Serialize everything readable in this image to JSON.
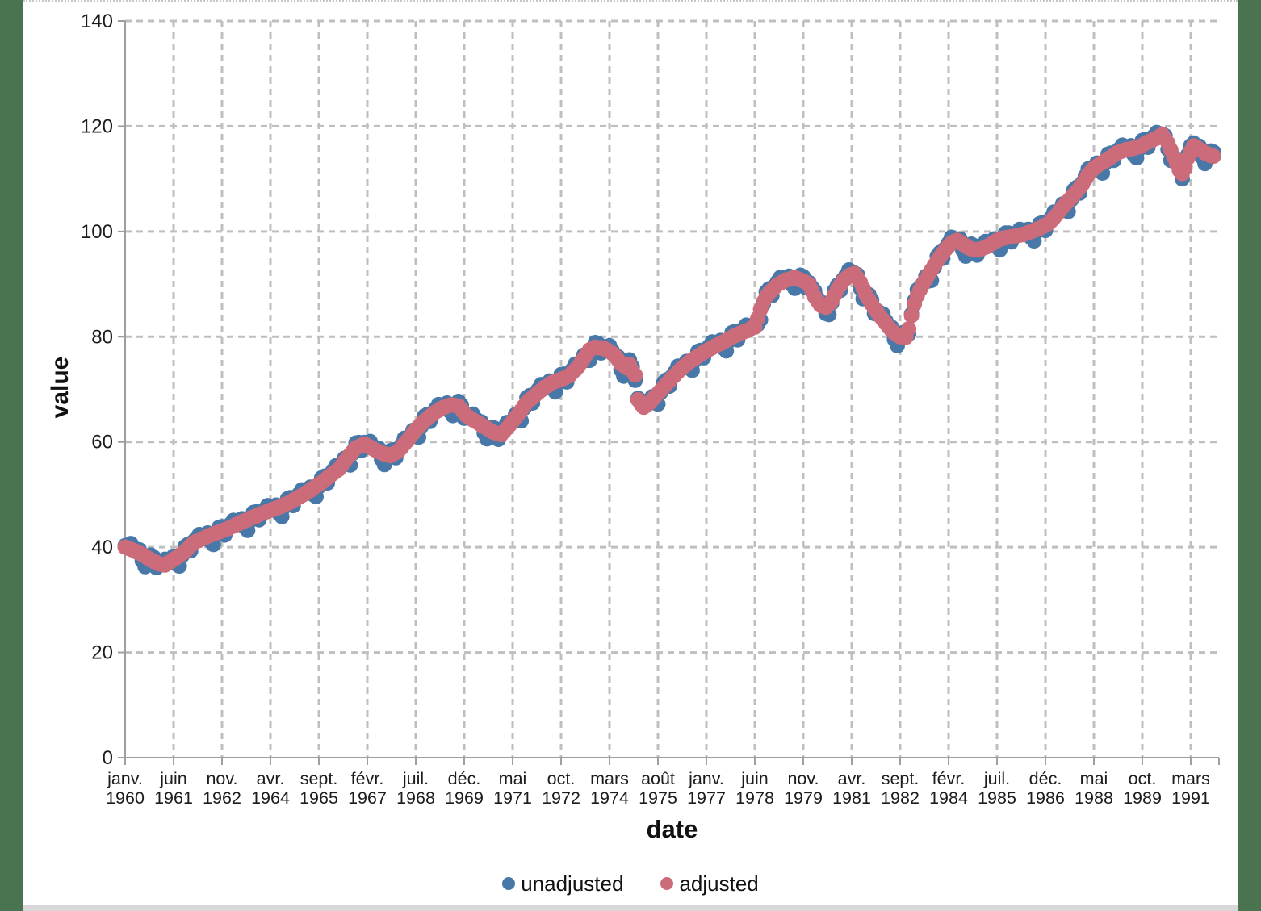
{
  "page": {
    "margin_color": "#4A7350",
    "canvas_color": "#FFFFFF"
  },
  "chart_data": {
    "type": "scatter",
    "title": "",
    "xlabel": "date",
    "ylabel": "value",
    "x_start": "janv. 1960",
    "x_end": "nov. 1991",
    "frequency": "monthly",
    "ylim": [
      0,
      140
    ],
    "y_ticks": [
      0,
      20,
      40,
      60,
      80,
      100,
      120,
      140
    ],
    "x_tick_month_interval": 17,
    "x_tick_labels": [
      [
        "janv.",
        "1960"
      ],
      [
        "juin",
        "1961"
      ],
      [
        "nov.",
        "1962"
      ],
      [
        "avr.",
        "1964"
      ],
      [
        "sept.",
        "1965"
      ],
      [
        "févr.",
        "1967"
      ],
      [
        "juil.",
        "1968"
      ],
      [
        "déc.",
        "1969"
      ],
      [
        "mai",
        "1971"
      ],
      [
        "oct.",
        "1972"
      ],
      [
        "mars",
        "1974"
      ],
      [
        "août",
        "1975"
      ],
      [
        "janv.",
        "1977"
      ],
      [
        "juin",
        "1978"
      ],
      [
        "nov.",
        "1979"
      ],
      [
        "avr.",
        "1981"
      ],
      [
        "sept.",
        "1982"
      ],
      [
        "févr.",
        "1984"
      ],
      [
        "juil.",
        "1985"
      ],
      [
        "déc.",
        "1986"
      ],
      [
        "mai",
        "1988"
      ],
      [
        "oct.",
        "1989"
      ],
      [
        "mars",
        "1991"
      ]
    ],
    "grid": "dashed",
    "legend_position": "bottom",
    "marker_radius": 9.5,
    "series": [
      {
        "name": "unadjusted",
        "color": "#4878A8",
        "values": [
          40.3,
          40.4,
          40.7,
          39.9,
          39.2,
          39.5,
          37.4,
          36.3,
          37.5,
          38.5,
          38.1,
          36.1,
          37.1,
          37.3,
          37.7,
          37.5,
          37.4,
          38.3,
          36.8,
          36.4,
          38.4,
          40.1,
          40.5,
          39.3,
          41.1,
          41.7,
          42.4,
          42.1,
          41.9,
          42.7,
          41.1,
          40.5,
          42.3,
          43.8,
          43.9,
          42.3,
          43.8,
          44.4,
          45.1,
          44.8,
          44.6,
          45.4,
          43.8,
          43.2,
          45.1,
          46.6,
          46.7,
          45.2,
          46.7,
          47.2,
          47.9,
          47.5,
          47.3,
          48.0,
          46.4,
          45.8,
          47.7,
          49.2,
          49.4,
          47.9,
          49.5,
          50.1,
          50.9,
          50.6,
          50.6,
          51.4,
          50.0,
          49.6,
          51.5,
          53.2,
          53.5,
          52.2,
          53.9,
          54.6,
          55.5,
          55.3,
          55.6,
          56.9,
          55.8,
          55.6,
          57.9,
          59.8,
          59.9,
          58.4,
          59.9,
          59.9,
          60.1,
          59.2,
          58.5,
          58.8,
          56.7,
          55.7,
          57.2,
          58.3,
          58.5,
          57.0,
          58.6,
          59.5,
          60.7,
          60.7,
          61.0,
          62.2,
          61.1,
          60.9,
          63.0,
          64.9,
          65.2,
          63.9,
          65.6,
          66.3,
          67.1,
          66.9,
          66.7,
          67.4,
          65.8,
          65.0,
          66.5,
          67.7,
          67.0,
          64.5,
          65.2,
          65.2,
          65.3,
          64.4,
          63.7,
          63.8,
          61.7,
          60.6,
          61.8,
          62.8,
          62.5,
          60.5,
          61.7,
          62.6,
          63.7,
          63.7,
          64.0,
          65.2,
          64.1,
          64.0,
          66.4,
          68.4,
          68.8,
          67.4,
          69.2,
          70.0,
          70.9,
          70.8,
          70.7,
          71.6,
          70.1,
          69.5,
          71.3,
          72.8,
          72.9,
          71.4,
          72.9,
          73.8,
          74.8,
          74.8,
          75.2,
          76.5,
          75.5,
          75.5,
          77.4,
          78.9,
          78.7,
          76.9,
          78.1,
          78.1,
          78.3,
          77.3,
          76.4,
          76.2,
          73.7,
          72.5,
          73.7,
          75.6,
          74.3,
          71.7,
          68.3,
          67.8,
          67.7,
          67.5,
          67.5,
          68.6,
          67.4,
          67.2,
          69.4,
          71.3,
          71.8,
          70.6,
          72.5,
          73.3,
          74.4,
          74.3,
          74.4,
          75.3,
          74.0,
          73.6,
          75.5,
          77.2,
          77.4,
          76.0,
          77.6,
          78.2,
          79.0,
          78.7,
          78.6,
          79.3,
          77.8,
          77.3,
          79.2,
          80.8,
          81.0,
          79.4,
          81.0,
          81.5,
          82.2,
          81.8,
          81.8,
          82.4,
          82.3,
          83.2,
          86.2,
          88.5,
          89.1,
          87.8,
          89.7,
          90.5,
          91.3,
          91.0,
          90.9,
          91.5,
          89.9,
          89.2,
          90.6,
          91.7,
          91.4,
          89.3,
          90.3,
          89.4,
          88.7,
          87.3,
          86.1,
          86.4,
          84.4,
          84.2,
          86.4,
          88.8,
          89.8,
          88.8,
          90.9,
          91.7,
          92.7,
          92.3,
          92.1,
          91.8,
          89.2,
          87.2,
          87.6,
          88.0,
          87.0,
          84.4,
          84.9,
          84.5,
          84.3,
          83.0,
          81.9,
          81.8,
          79.5,
          78.3,
          79.6,
          80.8,
          80.7,
          80.5,
          84.3,
          86.8,
          88.9,
          89.4,
          90.1,
          91.5,
          90.6,
          90.7,
          93.2,
          95.3,
          96.0,
          94.9,
          96.9,
          97.8,
          98.9,
          98.6,
          98.4,
          98.6,
          96.4,
          95.3,
          96.5,
          97.6,
          97.3,
          95.5,
          96.9,
          97.4,
          98.1,
          97.8,
          97.7,
          98.6,
          97.1,
          96.5,
          98.3,
          99.7,
          99.7,
          98.0,
          99.4,
          99.8,
          100.4,
          99.9,
          99.7,
          100.4,
          98.8,
          98.2,
          100.0,
          101.5,
          101.7,
          100.2,
          101.8,
          102.6,
          103.7,
          103.7,
          104.0,
          105.2,
          104.0,
          103.8,
          106.0,
          107.9,
          108.4,
          107.3,
          109.3,
          110.5,
          111.9,
          111.9,
          112.1,
          113.0,
          111.6,
          111.1,
          113.0,
          114.7,
          114.9,
          113.5,
          115.2,
          115.7,
          116.4,
          116.0,
          115.7,
          116.3,
          114.6,
          114.0,
          115.7,
          117.3,
          117.5,
          116.0,
          117.5,
          118.1,
          118.8,
          118.6,
          118.5,
          118.2,
          115.6,
          113.5,
          113.8,
          113.8,
          112.4,
          110.0,
          112.3,
          114.6,
          116.3,
          116.8,
          116.1,
          116.2,
          114.1,
          112.9,
          114.3,
          115.3,
          115.1
        ]
      },
      {
        "name": "adjusted",
        "color": "#CC6B79",
        "values": [
          40.0,
          39.8,
          39.6,
          39.4,
          39.1,
          38.9,
          38.6,
          38.3,
          37.9,
          37.6,
          37.3,
          37.1,
          36.8,
          36.7,
          36.6,
          37.0,
          37.3,
          37.7,
          38.0,
          38.4,
          38.8,
          39.2,
          39.7,
          40.3,
          40.8,
          41.1,
          41.3,
          41.6,
          41.8,
          42.1,
          42.3,
          42.5,
          42.7,
          42.9,
          43.1,
          43.3,
          43.5,
          43.8,
          44.0,
          44.3,
          44.5,
          44.8,
          45.0,
          45.2,
          45.5,
          45.7,
          45.9,
          46.2,
          46.4,
          46.6,
          46.8,
          47.0,
          47.2,
          47.4,
          47.6,
          47.8,
          48.1,
          48.3,
          48.6,
          48.9,
          49.2,
          49.5,
          49.8,
          50.1,
          50.5,
          50.8,
          51.2,
          51.6,
          51.9,
          52.3,
          52.7,
          53.2,
          53.6,
          54.0,
          54.4,
          54.8,
          55.5,
          56.3,
          57.0,
          57.6,
          58.3,
          58.9,
          59.1,
          59.4,
          59.6,
          59.3,
          59.0,
          58.7,
          58.4,
          58.2,
          57.9,
          57.7,
          57.6,
          57.4,
          57.7,
          58.0,
          58.3,
          58.9,
          59.6,
          60.2,
          60.9,
          61.6,
          62.3,
          62.9,
          63.4,
          64.0,
          64.4,
          64.9,
          65.3,
          65.7,
          66.0,
          66.4,
          66.6,
          66.8,
          67.0,
          67.0,
          66.9,
          66.8,
          66.2,
          65.5,
          64.9,
          64.6,
          64.2,
          63.9,
          63.6,
          63.2,
          62.9,
          62.6,
          62.2,
          61.9,
          61.7,
          61.5,
          61.4,
          62.0,
          62.6,
          63.2,
          63.9,
          64.6,
          65.3,
          66.0,
          66.8,
          67.5,
          68.0,
          68.4,
          68.9,
          69.4,
          69.8,
          70.3,
          70.6,
          71.0,
          71.3,
          71.5,
          71.7,
          71.9,
          72.1,
          72.4,
          72.6,
          73.2,
          73.7,
          74.3,
          75.1,
          75.9,
          76.7,
          77.5,
          77.8,
          78.0,
          77.9,
          77.9,
          77.8,
          77.5,
          77.2,
          76.8,
          76.3,
          75.6,
          74.9,
          74.5,
          74.1,
          74.7,
          73.5,
          72.7,
          68.0,
          67.2,
          66.6,
          67.0,
          67.4,
          68.0,
          68.6,
          69.2,
          69.8,
          70.4,
          71.0,
          71.6,
          72.2,
          72.7,
          73.3,
          73.8,
          74.3,
          74.7,
          75.2,
          75.6,
          75.9,
          76.3,
          76.6,
          77.0,
          77.3,
          77.6,
          77.9,
          78.2,
          78.5,
          78.7,
          79.0,
          79.3,
          79.6,
          79.9,
          80.2,
          80.4,
          80.7,
          80.9,
          81.1,
          81.3,
          81.7,
          81.8,
          83.5,
          85.2,
          86.6,
          87.6,
          88.3,
          88.8,
          89.4,
          89.9,
          90.2,
          90.5,
          90.8,
          90.9,
          91.1,
          91.2,
          91.0,
          90.8,
          90.6,
          90.3,
          90.0,
          88.8,
          87.6,
          86.8,
          86.0,
          85.8,
          85.6,
          86.2,
          86.8,
          87.9,
          89.0,
          89.8,
          90.6,
          91.1,
          91.6,
          91.8,
          92.0,
          91.2,
          90.4,
          89.2,
          88.0,
          87.1,
          86.2,
          85.4,
          84.6,
          83.9,
          83.2,
          82.5,
          81.8,
          81.2,
          80.7,
          80.3,
          80.0,
          79.9,
          79.9,
          81.5,
          84.0,
          86.2,
          87.8,
          88.9,
          90.0,
          90.9,
          91.8,
          92.7,
          93.6,
          94.4,
          95.2,
          95.9,
          96.6,
          97.2,
          97.8,
          98.1,
          98.3,
          98.0,
          97.6,
          97.3,
          96.9,
          96.7,
          96.5,
          96.5,
          96.6,
          96.8,
          97.0,
          97.3,
          97.6,
          98.0,
          98.3,
          98.5,
          98.7,
          98.8,
          98.9,
          99.0,
          99.1,
          99.2,
          99.3,
          99.4,
          99.6,
          99.8,
          100.0,
          100.2,
          100.4,
          100.6,
          100.9,
          101.2,
          101.5,
          102.0,
          102.6,
          103.2,
          103.9,
          104.6,
          105.2,
          105.8,
          106.4,
          107.0,
          107.6,
          108.3,
          109.0,
          109.9,
          110.8,
          111.4,
          112.0,
          112.4,
          112.8,
          113.1,
          113.4,
          113.8,
          114.1,
          114.5,
          114.9,
          115.1,
          115.3,
          115.5,
          115.6,
          115.7,
          115.8,
          116.0,
          116.1,
          116.4,
          116.7,
          117.0,
          117.2,
          117.5,
          117.7,
          118.1,
          118.4,
          117.6,
          116.8,
          115.5,
          114.2,
          112.9,
          111.6,
          111.0,
          112.0,
          114.0,
          115.2,
          116.3,
          116.0,
          115.6,
          115.3,
          114.9,
          114.7,
          114.4,
          114.3
        ]
      }
    ]
  },
  "legend": {
    "items": [
      {
        "label": "unadjusted",
        "color": "#4878A8"
      },
      {
        "label": "adjusted",
        "color": "#CC6B79"
      }
    ]
  }
}
